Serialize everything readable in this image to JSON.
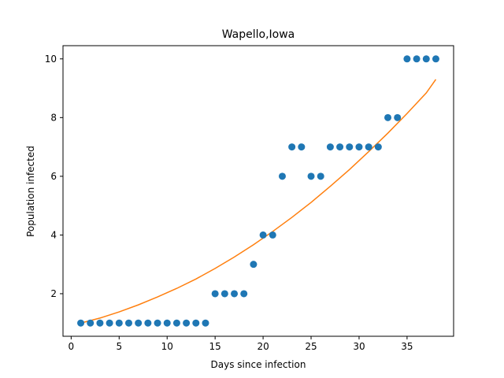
{
  "chart_data": {
    "type": "scatter",
    "title": "Wapello,Iowa",
    "xlabel": "Days since infection",
    "ylabel": "Population infected",
    "xlim": [
      -0.85,
      39.85
    ],
    "ylim": [
      0.55,
      10.45
    ],
    "xticks": [
      0,
      5,
      10,
      15,
      20,
      25,
      30,
      35
    ],
    "yticks": [
      2,
      4,
      6,
      8,
      10
    ],
    "grid": false,
    "series": [
      {
        "kind": "scatter",
        "color": "#1f77b4",
        "x": [
          1,
          2,
          3,
          4,
          5,
          6,
          7,
          8,
          9,
          10,
          11,
          12,
          13,
          14,
          15,
          16,
          17,
          18,
          19,
          20,
          21,
          22,
          23,
          24,
          25,
          26,
          27,
          28,
          29,
          30,
          31,
          32,
          33,
          34,
          35,
          36,
          37,
          38
        ],
        "y": [
          1,
          1,
          1,
          1,
          1,
          1,
          1,
          1,
          1,
          1,
          1,
          1,
          1,
          1,
          2,
          2,
          2,
          2,
          3,
          4,
          4,
          6,
          7,
          7,
          6,
          6,
          7,
          7,
          7,
          7,
          7,
          7,
          8,
          8,
          10,
          10,
          10,
          10
        ]
      },
      {
        "kind": "line",
        "color": "#ff7f0e",
        "x": [
          1,
          3,
          5,
          7,
          9,
          11,
          13,
          15,
          17,
          19,
          21,
          23,
          25,
          27,
          29,
          31,
          33,
          35,
          37,
          38
        ],
        "y": [
          1.0,
          1.17,
          1.38,
          1.62,
          1.89,
          2.18,
          2.5,
          2.86,
          3.25,
          3.67,
          4.12,
          4.6,
          5.11,
          5.66,
          6.23,
          6.84,
          7.47,
          8.14,
          8.84,
          9.3
        ]
      }
    ]
  }
}
